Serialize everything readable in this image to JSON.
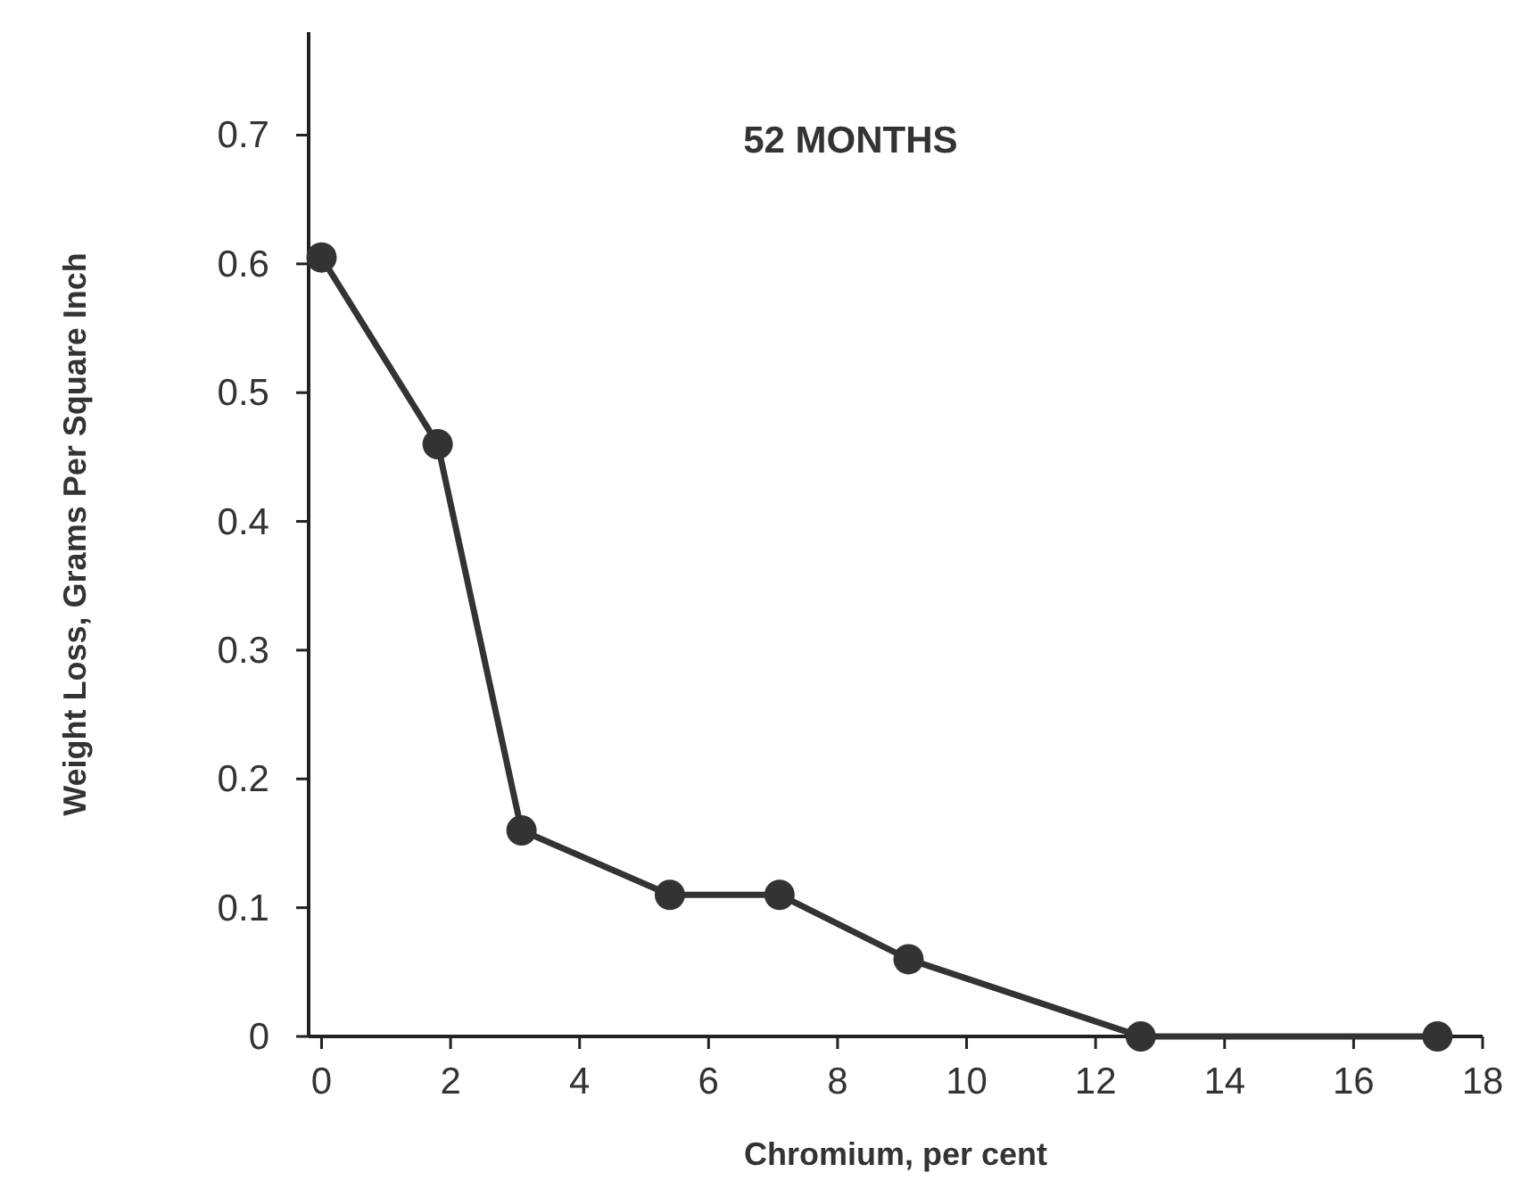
{
  "chart_data": {
    "type": "line",
    "title": "52 MONTHS",
    "xlabel": "Chromium, per cent",
    "ylabel": "Weight Loss, Grams Per Square Inch",
    "x": [
      0,
      1.8,
      3.1,
      5.4,
      7.1,
      9.1,
      12.7,
      17.3
    ],
    "series": [
      {
        "color": "#333333",
        "values": [
          0.605,
          0.46,
          0.16,
          0.11,
          0.11,
          0.06,
          0,
          0
        ]
      }
    ],
    "xlim": [
      -0.2,
      18
    ],
    "xticks": [
      0,
      2,
      4,
      6,
      8,
      10,
      12,
      14,
      16,
      18
    ],
    "ylim": [
      0,
      0.78
    ],
    "yticks": [
      0,
      0.1,
      0.2,
      0.3,
      0.4,
      0.5,
      0.6,
      0.7
    ],
    "marker": "circle",
    "line_style": "solid",
    "grid": false
  }
}
